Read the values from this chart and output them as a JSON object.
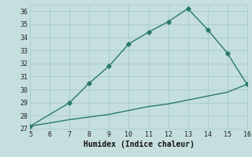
{
  "title": "",
  "xlabel": "Humidex (Indice chaleur)",
  "background_color": "#c5dede",
  "line_color": "#2a7a6e",
  "upper_x": [
    5,
    7,
    8,
    9,
    10,
    11,
    12,
    13,
    14,
    15,
    16
  ],
  "upper_y": [
    27.2,
    29.0,
    30.5,
    31.8,
    33.5,
    34.4,
    35.2,
    36.2,
    34.6,
    32.8,
    30.4
  ],
  "lower_x": [
    5,
    7,
    8,
    9,
    10,
    11,
    12,
    13,
    14,
    15,
    16
  ],
  "lower_y": [
    27.2,
    27.7,
    27.9,
    28.1,
    28.4,
    28.7,
    28.9,
    29.2,
    29.5,
    29.8,
    30.4
  ],
  "xlim": [
    5,
    16
  ],
  "ylim": [
    27,
    36.5
  ],
  "xticks": [
    5,
    6,
    7,
    8,
    9,
    10,
    11,
    12,
    13,
    14,
    15,
    16
  ],
  "yticks": [
    27,
    28,
    29,
    30,
    31,
    32,
    33,
    34,
    35,
    36
  ],
  "grid_color": "#aacece",
  "marker": "D",
  "markersize": 2.8,
  "linewidth": 1.0
}
